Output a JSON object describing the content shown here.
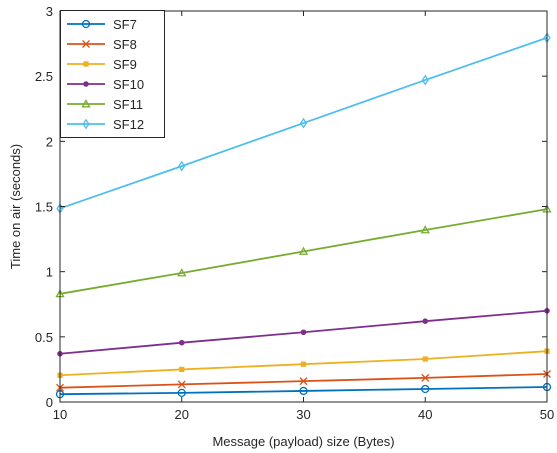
{
  "chart_data": {
    "type": "line",
    "title": "",
    "xlabel": "Message (payload) size (Bytes)",
    "ylabel": "Time on air (seconds)",
    "x": [
      10,
      20,
      30,
      40,
      50
    ],
    "xlim": [
      10,
      50
    ],
    "ylim": [
      0,
      3
    ],
    "xticks": [
      "10",
      "20",
      "30",
      "40",
      "50"
    ],
    "yticks": [
      "0",
      "0.5",
      "1",
      "1.5",
      "2",
      "2.5",
      "3"
    ],
    "grid": false,
    "legend_position": "top-left",
    "series": [
      {
        "name": "SF7",
        "color": "#0072bd",
        "marker": "circle",
        "values": [
          0.06,
          0.07,
          0.085,
          0.1,
          0.115
        ]
      },
      {
        "name": "SF8",
        "color": "#d95319",
        "marker": "x",
        "values": [
          0.11,
          0.135,
          0.16,
          0.185,
          0.215
        ]
      },
      {
        "name": "SF9",
        "color": "#edb120",
        "marker": "square",
        "values": [
          0.205,
          0.25,
          0.29,
          0.33,
          0.39
        ]
      },
      {
        "name": "SF10",
        "color": "#7e2f8e",
        "marker": "dot",
        "values": [
          0.37,
          0.455,
          0.535,
          0.62,
          0.7
        ]
      },
      {
        "name": "SF11",
        "color": "#77ac30",
        "marker": "triangle",
        "values": [
          0.83,
          0.99,
          1.155,
          1.32,
          1.48
        ]
      },
      {
        "name": "SF12",
        "color": "#4dbeee",
        "marker": "diamond",
        "values": [
          1.485,
          1.81,
          2.14,
          2.47,
          2.795
        ]
      }
    ]
  }
}
